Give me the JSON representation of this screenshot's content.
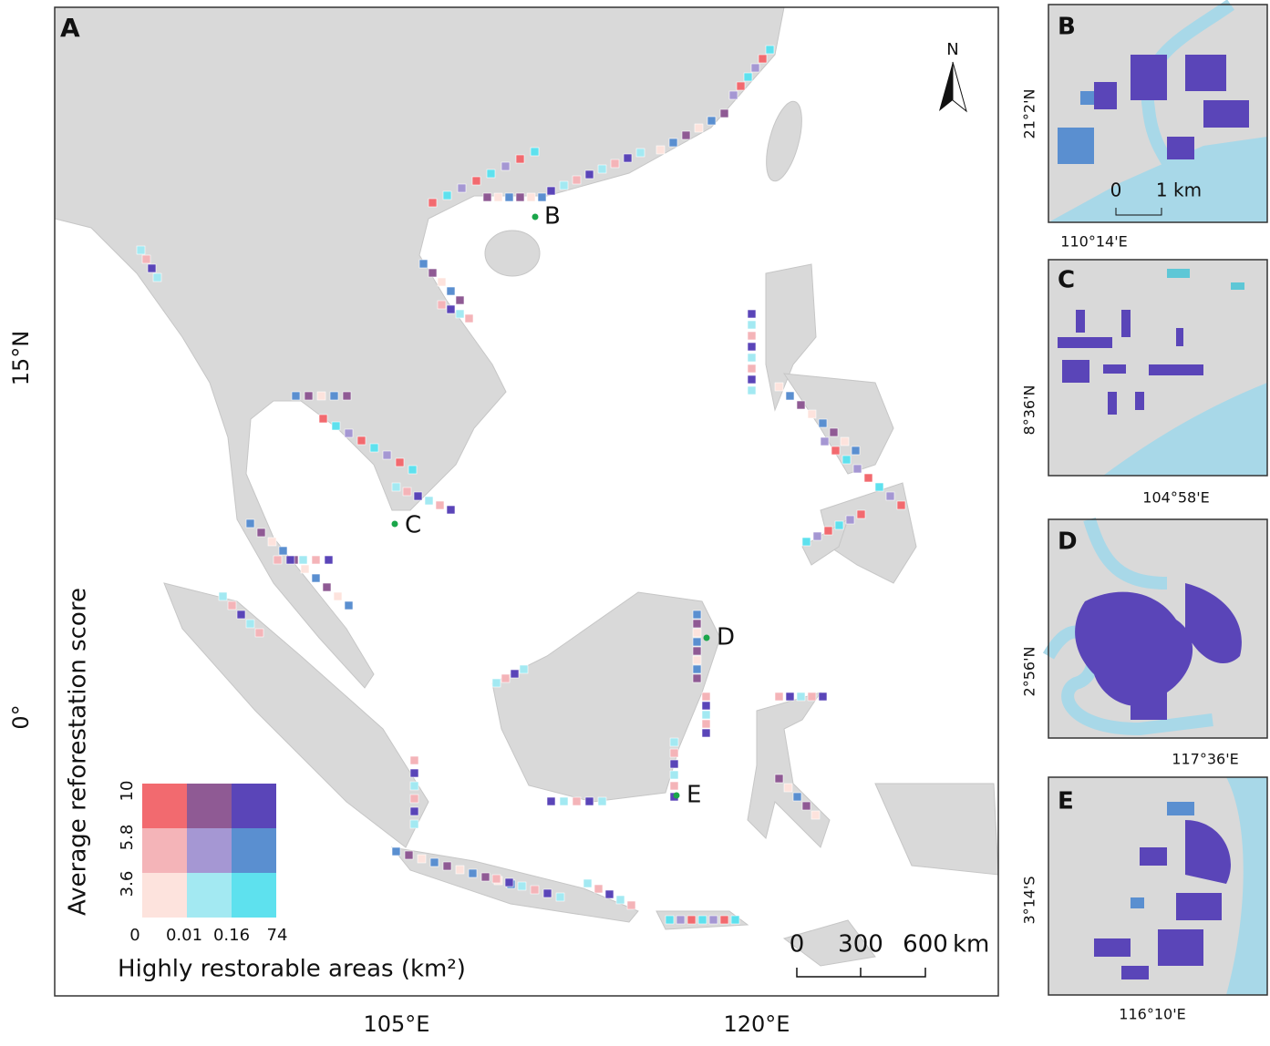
{
  "main": {
    "label": "A",
    "lat_labels": [
      "15°N",
      "0°"
    ],
    "lon_labels": [
      "105°E",
      "120°E"
    ],
    "sites": [
      "B",
      "C",
      "D",
      "E"
    ],
    "north": "N",
    "scale": {
      "ticks": [
        "0",
        "300",
        "600"
      ],
      "unit": "km"
    },
    "legend": {
      "y_title": "Average reforestation score",
      "y_ticks": [
        "3.6",
        "5.8",
        "10"
      ],
      "x_title": "Highly restorable areas (km²)",
      "x_ticks": [
        "0",
        "0.01",
        "0.16",
        "74"
      ],
      "colors": [
        [
          "#fde3dd",
          "#a3e9f2",
          "#5ee1ee"
        ],
        [
          "#f4b4b8",
          "#a597d3",
          "#5a8fd0"
        ],
        [
          "#f26a6f",
          "#8f5a94",
          "#5a45b8"
        ]
      ]
    }
  },
  "insets": [
    {
      "label": "B",
      "lat": "21°2'N",
      "lon": "110°14'E",
      "scale": [
        "0",
        "1 km"
      ]
    },
    {
      "label": "C",
      "lat": "8°36'N",
      "lon": "104°58'E"
    },
    {
      "label": "D",
      "lat": "2°56'N",
      "lon": "117°36'E"
    },
    {
      "label": "E",
      "lat": "3°14'S",
      "lon": "116°10'E"
    }
  ]
}
